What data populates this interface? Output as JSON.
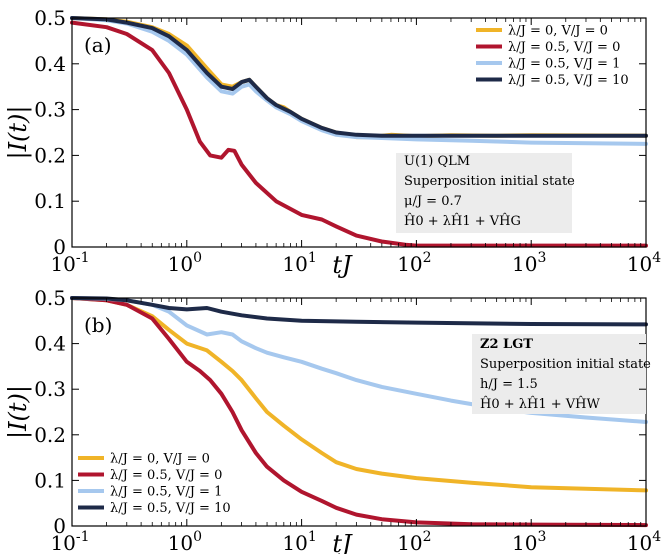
{
  "chart_data": [
    {
      "type": "line",
      "panel_label": "(a)",
      "xlabel": "tJ",
      "ylabel": "|I(t)|",
      "xscale": "log",
      "xlim": [
        0.1,
        10000
      ],
      "ylim": [
        0,
        0.5
      ],
      "xticks": [
        "10^-1",
        "10^0",
        "10^1",
        "10^2",
        "10^3",
        "10^4"
      ],
      "yticks": [
        "0",
        "0.1",
        "0.2",
        "0.3",
        "0.4",
        "0.5"
      ],
      "legend_position": "top-right",
      "annotation": [
        "U(1) QLM",
        "Superposition initial state",
        "μ/J = 0.7",
        "Ĥ0 + λĤ1 + VĤG"
      ],
      "series": [
        {
          "name": "λ/J = 0, V/J = 0",
          "color": "#f0b428",
          "x": [
            0.1,
            0.2,
            0.3,
            0.5,
            0.7,
            1.0,
            1.5,
            2.0,
            2.5,
            3.0,
            3.5,
            4.0,
            5.0,
            6.0,
            7.0,
            8.0,
            10,
            15,
            20,
            30,
            40,
            60,
            100,
            200,
            500,
            1000,
            10000
          ],
          "y": [
            0.5,
            0.497,
            0.492,
            0.48,
            0.465,
            0.44,
            0.39,
            0.355,
            0.35,
            0.36,
            0.365,
            0.35,
            0.325,
            0.31,
            0.305,
            0.295,
            0.28,
            0.26,
            0.25,
            0.24,
            0.24,
            0.245,
            0.242,
            0.244,
            0.243,
            0.244,
            0.243
          ]
        },
        {
          "name": "λ/J = 0.5, V/J = 0",
          "color": "#b0152e",
          "x": [
            0.1,
            0.2,
            0.3,
            0.5,
            0.7,
            1.0,
            1.3,
            1.6,
            2.0,
            2.3,
            2.6,
            3.0,
            4.0,
            6.0,
            10,
            15,
            20,
            30,
            50,
            80,
            100,
            200,
            1000,
            10000
          ],
          "y": [
            0.49,
            0.48,
            0.465,
            0.43,
            0.38,
            0.3,
            0.23,
            0.2,
            0.195,
            0.212,
            0.21,
            0.18,
            0.14,
            0.1,
            0.07,
            0.06,
            0.045,
            0.025,
            0.012,
            0.005,
            0.003,
            0.003,
            0.003,
            0.003
          ]
        },
        {
          "name": "λ/J = 0.5, V/J = 1",
          "color": "#a6c8ee",
          "x": [
            0.1,
            0.2,
            0.3,
            0.5,
            0.7,
            1.0,
            1.5,
            2.0,
            2.5,
            3.0,
            3.5,
            4.0,
            5.0,
            6.0,
            8.0,
            10,
            15,
            20,
            30,
            50,
            100,
            300,
            1000,
            10000
          ],
          "y": [
            0.5,
            0.495,
            0.488,
            0.47,
            0.45,
            0.42,
            0.37,
            0.34,
            0.335,
            0.35,
            0.355,
            0.34,
            0.32,
            0.305,
            0.29,
            0.275,
            0.255,
            0.245,
            0.24,
            0.238,
            0.235,
            0.232,
            0.228,
            0.225
          ]
        },
        {
          "name": "λ/J = 0.5, V/J = 10",
          "color": "#1e2a48",
          "x": [
            0.1,
            0.2,
            0.3,
            0.5,
            0.7,
            1.0,
            1.5,
            2.0,
            2.5,
            3.0,
            3.5,
            4.0,
            5.0,
            6.0,
            8.0,
            10,
            15,
            20,
            30,
            50,
            100,
            300,
            1000,
            10000
          ],
          "y": [
            0.5,
            0.497,
            0.49,
            0.478,
            0.46,
            0.43,
            0.38,
            0.35,
            0.345,
            0.36,
            0.365,
            0.35,
            0.325,
            0.31,
            0.295,
            0.28,
            0.26,
            0.25,
            0.245,
            0.243,
            0.243,
            0.243,
            0.243,
            0.243
          ]
        }
      ]
    },
    {
      "type": "line",
      "panel_label": "(b)",
      "xlabel": "tJ",
      "ylabel": "|I(t)|",
      "xscale": "log",
      "xlim": [
        0.1,
        10000
      ],
      "ylim": [
        0,
        0.5
      ],
      "xticks": [
        "10^-1",
        "10^0",
        "10^1",
        "10^2",
        "10^3",
        "10^4"
      ],
      "yticks": [
        "0",
        "0.1",
        "0.2",
        "0.3",
        "0.4",
        "0.5"
      ],
      "legend_position": "bottom-left",
      "annotation": [
        "Z2 LGT",
        "Superposition initial state",
        "h/J = 1.5",
        "Ĥ0 + λĤ1 + VĤW"
      ],
      "series": [
        {
          "name": "λ/J = 0, V/J = 0",
          "color": "#f0b428",
          "x": [
            0.1,
            0.2,
            0.3,
            0.5,
            0.7,
            1.0,
            1.5,
            2.0,
            2.5,
            3.0,
            4.0,
            5.0,
            7.0,
            10,
            15,
            20,
            30,
            50,
            100,
            300,
            1000,
            10000
          ],
          "y": [
            0.5,
            0.495,
            0.485,
            0.46,
            0.43,
            0.4,
            0.385,
            0.36,
            0.34,
            0.32,
            0.28,
            0.25,
            0.22,
            0.19,
            0.16,
            0.14,
            0.125,
            0.115,
            0.105,
            0.095,
            0.085,
            0.078
          ]
        },
        {
          "name": "λ/J = 0.5, V/J = 0",
          "color": "#b0152e",
          "x": [
            0.1,
            0.2,
            0.3,
            0.5,
            0.7,
            1.0,
            1.3,
            1.6,
            2.0,
            2.5,
            3.0,
            4.0,
            5.0,
            7.0,
            10,
            15,
            20,
            30,
            50,
            100,
            300,
            1000,
            10000
          ],
          "y": [
            0.5,
            0.495,
            0.485,
            0.455,
            0.41,
            0.36,
            0.34,
            0.32,
            0.29,
            0.25,
            0.21,
            0.16,
            0.13,
            0.1,
            0.075,
            0.055,
            0.04,
            0.025,
            0.015,
            0.008,
            0.004,
            0.003,
            0.002
          ]
        },
        {
          "name": "λ/J = 0.5, V/J = 1",
          "color": "#a6c8ee",
          "x": [
            0.1,
            0.2,
            0.3,
            0.5,
            0.7,
            1.0,
            1.5,
            2.0,
            2.5,
            3.0,
            4.0,
            5.0,
            7.0,
            10,
            15,
            20,
            30,
            50,
            100,
            200,
            500,
            1000,
            3000,
            10000
          ],
          "y": [
            0.5,
            0.498,
            0.495,
            0.485,
            0.47,
            0.44,
            0.42,
            0.425,
            0.42,
            0.405,
            0.39,
            0.38,
            0.37,
            0.36,
            0.345,
            0.335,
            0.32,
            0.305,
            0.29,
            0.275,
            0.258,
            0.248,
            0.238,
            0.228
          ]
        },
        {
          "name": "λ/J = 0.5, V/J = 10",
          "color": "#1e2a48",
          "x": [
            0.1,
            0.2,
            0.3,
            0.5,
            0.7,
            1.0,
            1.5,
            2.0,
            3.0,
            5.0,
            10,
            30,
            100,
            1000,
            10000
          ],
          "y": [
            0.5,
            0.499,
            0.495,
            0.485,
            0.478,
            0.475,
            0.478,
            0.47,
            0.462,
            0.455,
            0.45,
            0.448,
            0.446,
            0.443,
            0.442
          ]
        }
      ]
    }
  ]
}
